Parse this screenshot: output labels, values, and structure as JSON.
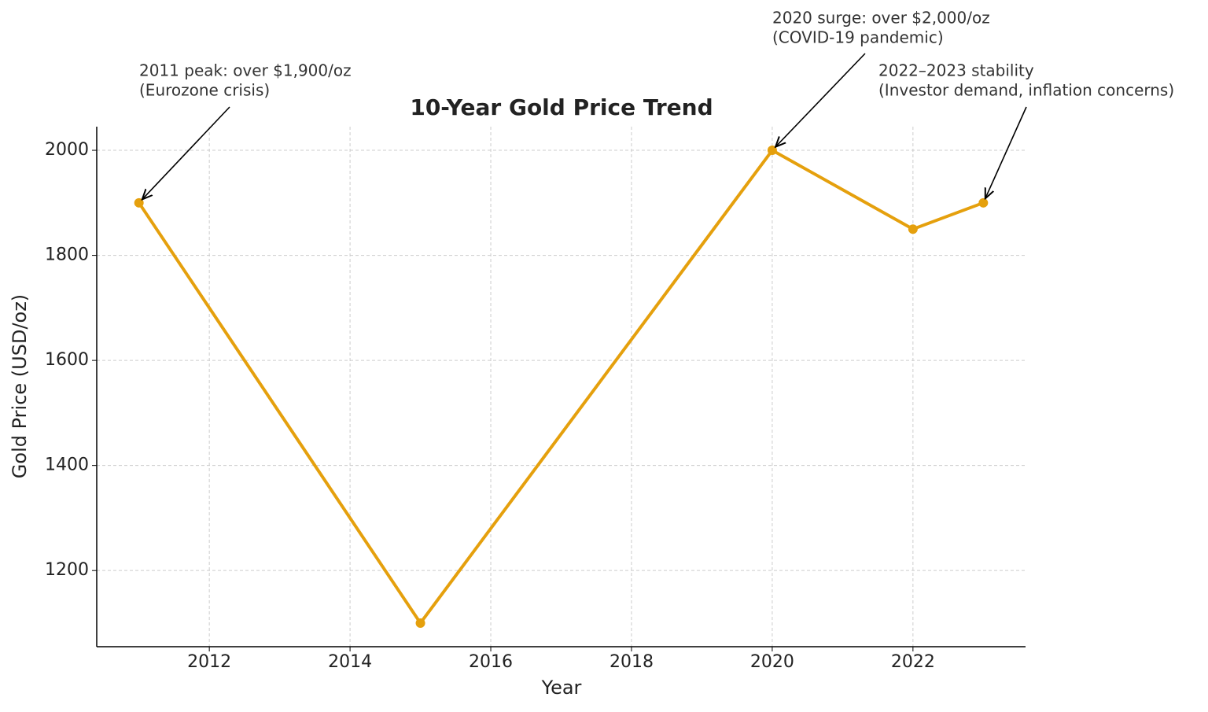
{
  "chart_data": {
    "type": "line",
    "title": "10-Year Gold Price Trend",
    "x_label": "Year",
    "y_label": "Gold Price (USD/oz)",
    "x": [
      2011,
      2015,
      2020,
      2022,
      2023
    ],
    "series": [
      {
        "name": "Gold Price",
        "color": "#e5a00d",
        "values": [
          1900,
          1100,
          2000,
          1850,
          1900
        ]
      }
    ],
    "xlim": [
      2010.4,
      2023.6
    ],
    "ylim": [
      1055,
      2045
    ],
    "xticks": [
      2012,
      2014,
      2016,
      2018,
      2020,
      2022
    ],
    "yticks": [
      1200,
      1400,
      1600,
      1800,
      2000
    ],
    "grid": true,
    "annotations": [
      {
        "lines": [
          "2011 peak: over $1,900/oz",
          "(Eurozone crisis)"
        ]
      },
      {
        "lines": [
          "2020 surge: over $2,000/oz",
          "(COVID-19 pandemic)"
        ]
      },
      {
        "lines": [
          "2022–2023 stability",
          "(Investor demand, inflation concerns)"
        ]
      }
    ]
  }
}
